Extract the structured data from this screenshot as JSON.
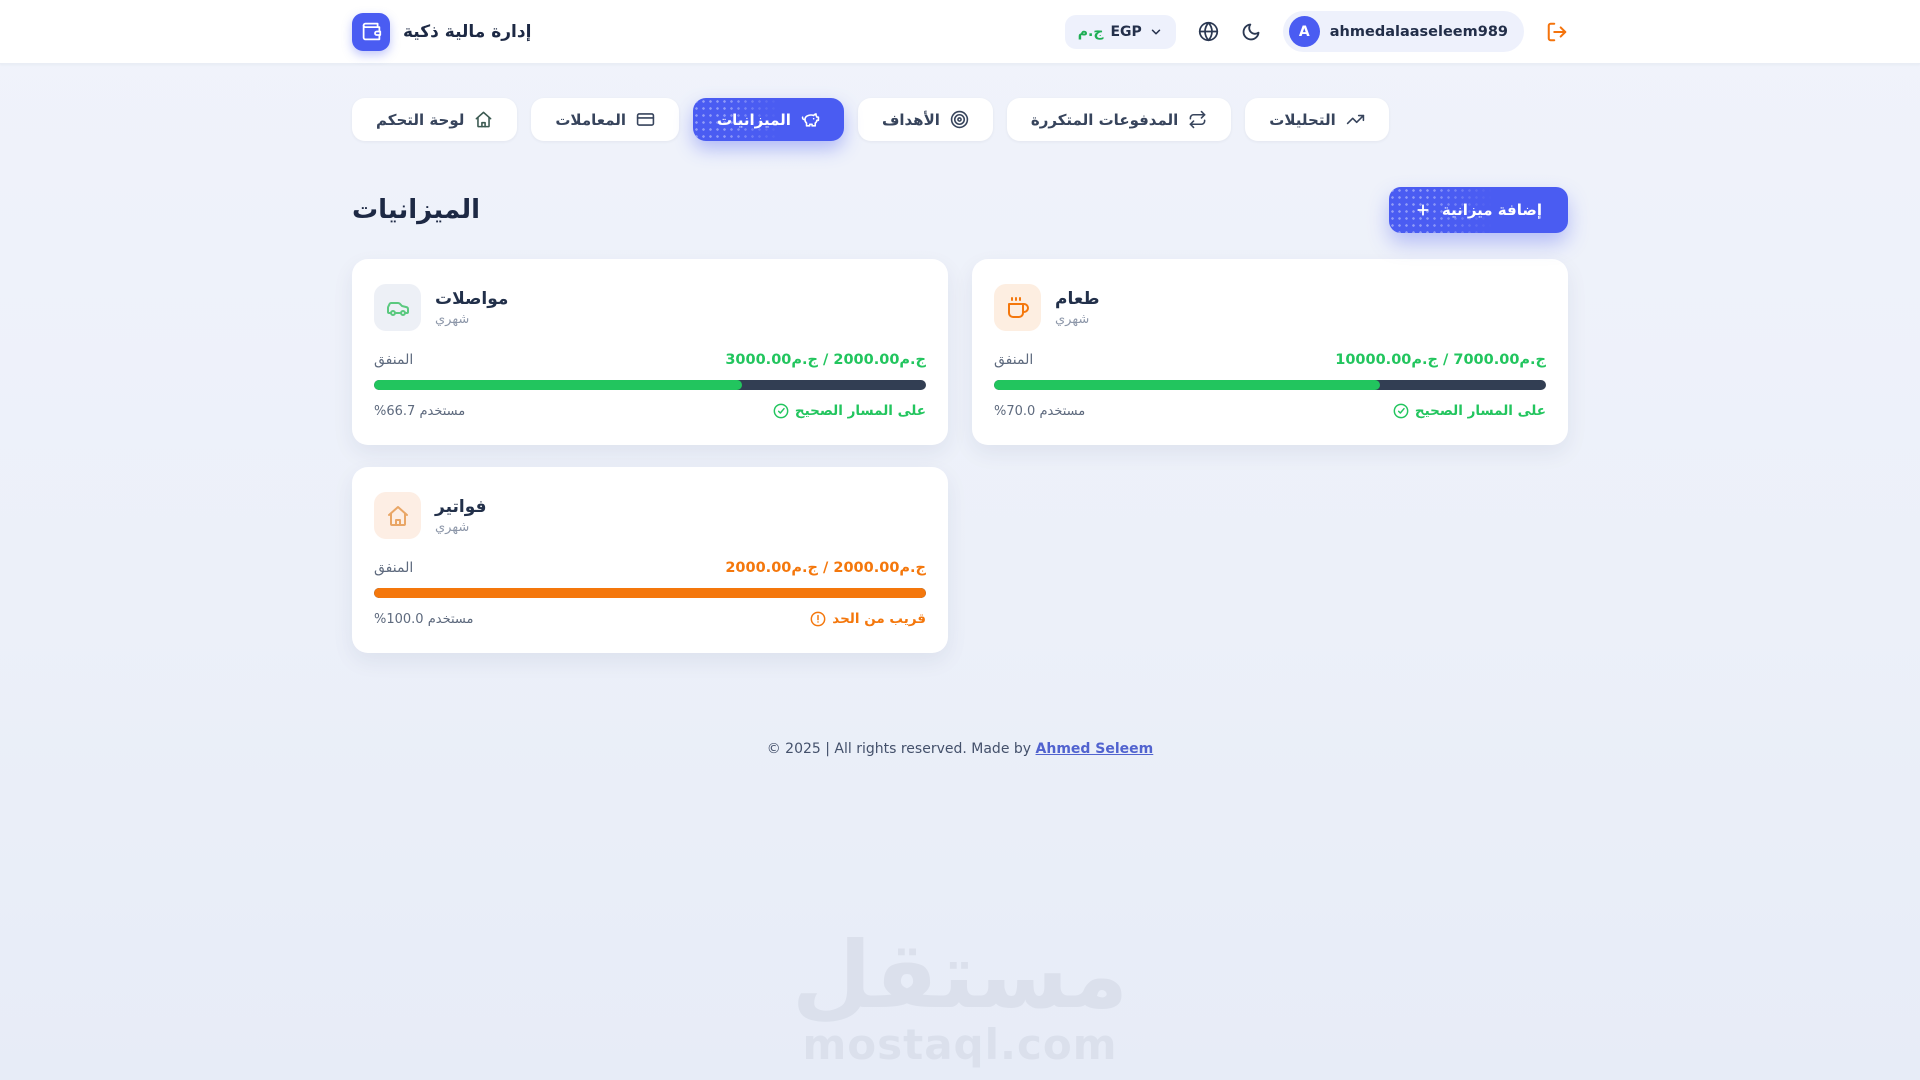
{
  "header": {
    "app_title": "إدارة مالية ذكية",
    "currency": {
      "symbol": "ج.م",
      "code": "EGP"
    },
    "username": "ahmedalaaseleem989",
    "avatar_letter": "A"
  },
  "nav": {
    "tabs": [
      {
        "label": "لوحة التحكم",
        "icon": "home-icon",
        "active": false
      },
      {
        "label": "المعاملات",
        "icon": "credit-card-icon",
        "active": false
      },
      {
        "label": "الميزانيات",
        "icon": "piggy-bank-icon",
        "active": true
      },
      {
        "label": "الأهداف",
        "icon": "target-icon",
        "active": false
      },
      {
        "label": "المدفوعات المتكررة",
        "icon": "repeat-icon",
        "active": false
      },
      {
        "label": "التحليلات",
        "icon": "trending-up-icon",
        "active": false
      }
    ]
  },
  "page": {
    "title": "الميزانيات",
    "add_button_label": "إضافة ميزانية"
  },
  "budgets": [
    {
      "name": "مواصلات",
      "period": "شهري",
      "icon": "car-icon",
      "icon_color": "#5bc97f",
      "icon_bg": "#edf0f6",
      "spent_label": "المنفق",
      "amounts": "ج.م2000.00 / ج.م3000.00",
      "percent": 66.7,
      "percent_label": "مستخدم 66.7%",
      "status": "على المسار الصحيح",
      "status_icon": "check-circle-icon",
      "accent": "#22c55e"
    },
    {
      "name": "طعام",
      "period": "شهري",
      "icon": "coffee-icon",
      "icon_color": "#f4770c",
      "icon_bg": "#fdeee1",
      "spent_label": "المنفق",
      "amounts": "ج.م7000.00 / ج.م10000.00",
      "percent": 70.0,
      "percent_label": "مستخدم 70.0%",
      "status": "على المسار الصحيح",
      "status_icon": "check-circle-icon",
      "accent": "#22c55e"
    },
    {
      "name": "فواتير",
      "period": "شهري",
      "icon": "home-icon",
      "icon_color": "#e9a666",
      "icon_bg": "#fdeee4",
      "spent_label": "المنفق",
      "amounts": "ج.م2000.00 / ج.م2000.00",
      "percent": 100.0,
      "percent_label": "مستخدم 100.0%",
      "status": "قريب من الحد",
      "status_icon": "alert-circle-icon",
      "accent": "#f4770c"
    }
  ],
  "footer": {
    "text": "© 2025 | All rights reserved. Made by",
    "link": "Ahmed Seleem"
  },
  "watermark": {
    "arabic": "مستقل",
    "domain": "mostaql.com"
  },
  "colors": {
    "primary": "#4a5cf2",
    "green": "#22c55e",
    "orange": "#f4770c",
    "track": "#323e53"
  }
}
